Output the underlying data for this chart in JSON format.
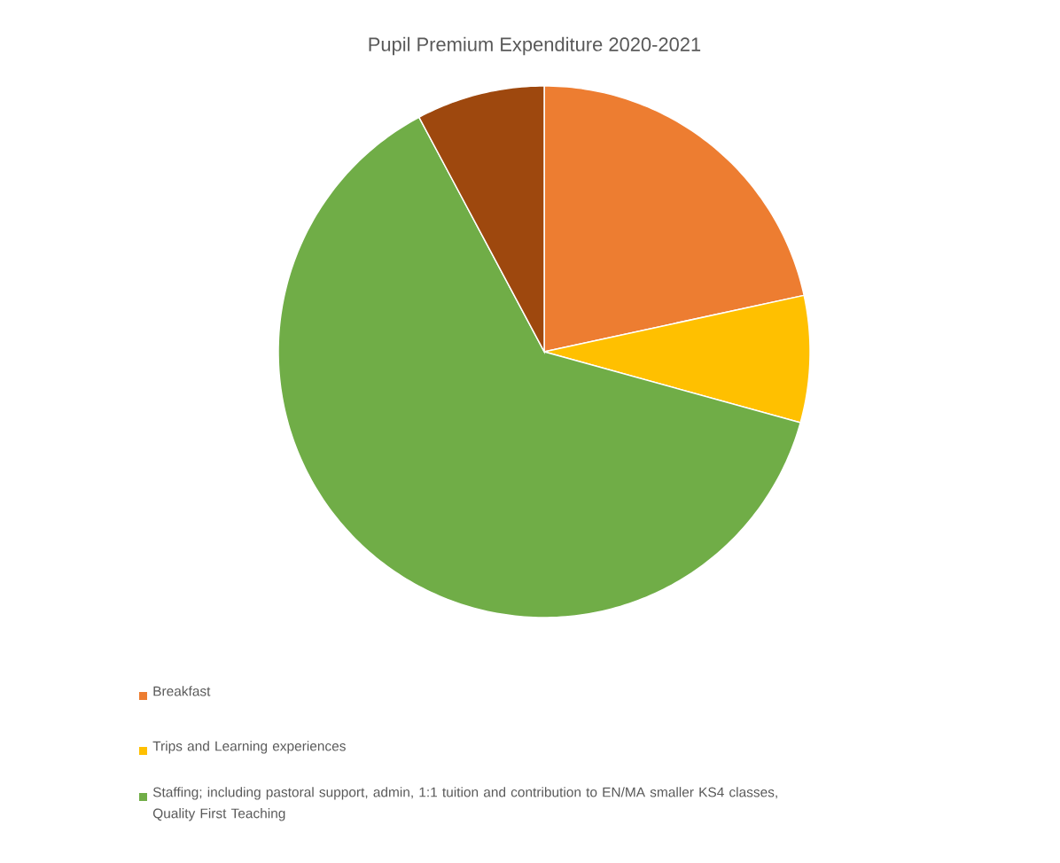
{
  "chart_data": {
    "type": "pie",
    "title": "Pupil Premium Expenditure 2020-2021",
    "categories": [
      "Breakfast",
      "Trips and Learning experiences",
      "Staffing; including pastoral support, admin, 1:1 tuition and contribution to EN/MA smaller KS4 classes, Quality First Teaching",
      null
    ],
    "values": [
      21.6,
      7.7,
      62.9,
      7.8
    ],
    "colors": [
      "#ed7d31",
      "#ffc000",
      "#70ad47",
      "#9e480e"
    ],
    "legend": "bottom"
  }
}
